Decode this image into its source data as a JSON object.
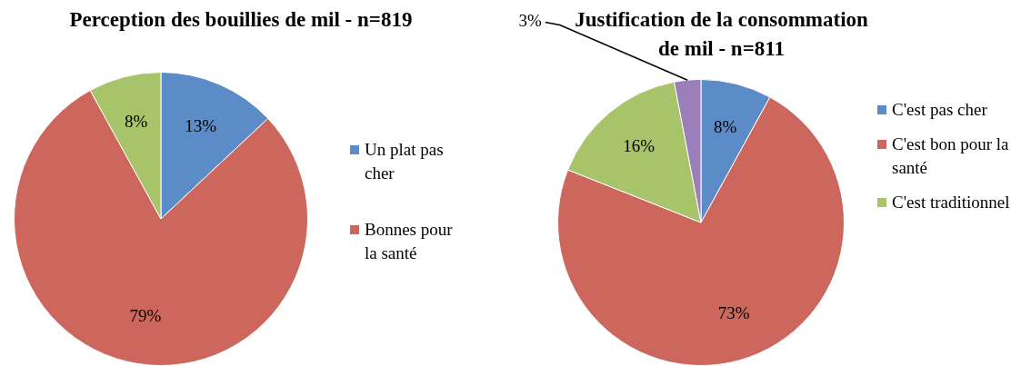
{
  "chart_data": [
    {
      "type": "pie",
      "title": "Perception des bouillies de mil - n=819",
      "categories": [
        "Un plat pas cher",
        "Bonnes pour la santé",
        null
      ],
      "values": [
        13,
        79,
        8
      ],
      "value_labels": [
        "13%",
        "79%",
        "8%"
      ],
      "colors": [
        "#5b8cc8",
        "#cd665d",
        "#a7c46b"
      ],
      "legend": "right"
    },
    {
      "type": "pie",
      "title": "Justification de la consommation de mil - n=811",
      "categories": [
        "C'est pas cher",
        "C'est bon pour la santé",
        "C'est traditionnel",
        null
      ],
      "values": [
        8,
        73,
        16,
        3
      ],
      "value_labels": [
        "8%",
        "73%",
        "16%",
        "3%"
      ],
      "colors": [
        "#5b8cc8",
        "#cd665d",
        "#a7c46b",
        "#9a7fbb"
      ],
      "legend": "right"
    }
  ]
}
